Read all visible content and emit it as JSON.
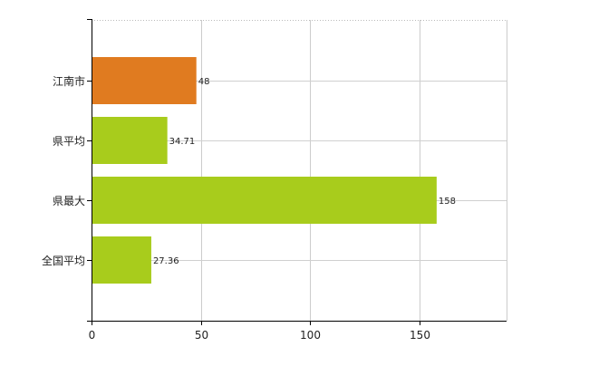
{
  "chart_data": {
    "type": "bar",
    "orientation": "horizontal",
    "title": "",
    "xlabel": "",
    "ylabel": "",
    "categories": [
      "江南市",
      "県平均",
      "県最大",
      "全国平均"
    ],
    "values": [
      48,
      34.71,
      158,
      27.36
    ],
    "value_labels": [
      "48",
      "34.71",
      "158",
      "27.36"
    ],
    "bar_colors": [
      "#E07B20",
      "#A8CC1C",
      "#A8CC1C",
      "#A8CC1C"
    ],
    "xlim": [
      0,
      190
    ],
    "xticks": [
      0,
      50,
      100,
      150
    ],
    "xtick_labels": [
      "0",
      "50",
      "100",
      "150"
    ],
    "grid": true,
    "gridline_style": "dotted",
    "legend": "none"
  }
}
